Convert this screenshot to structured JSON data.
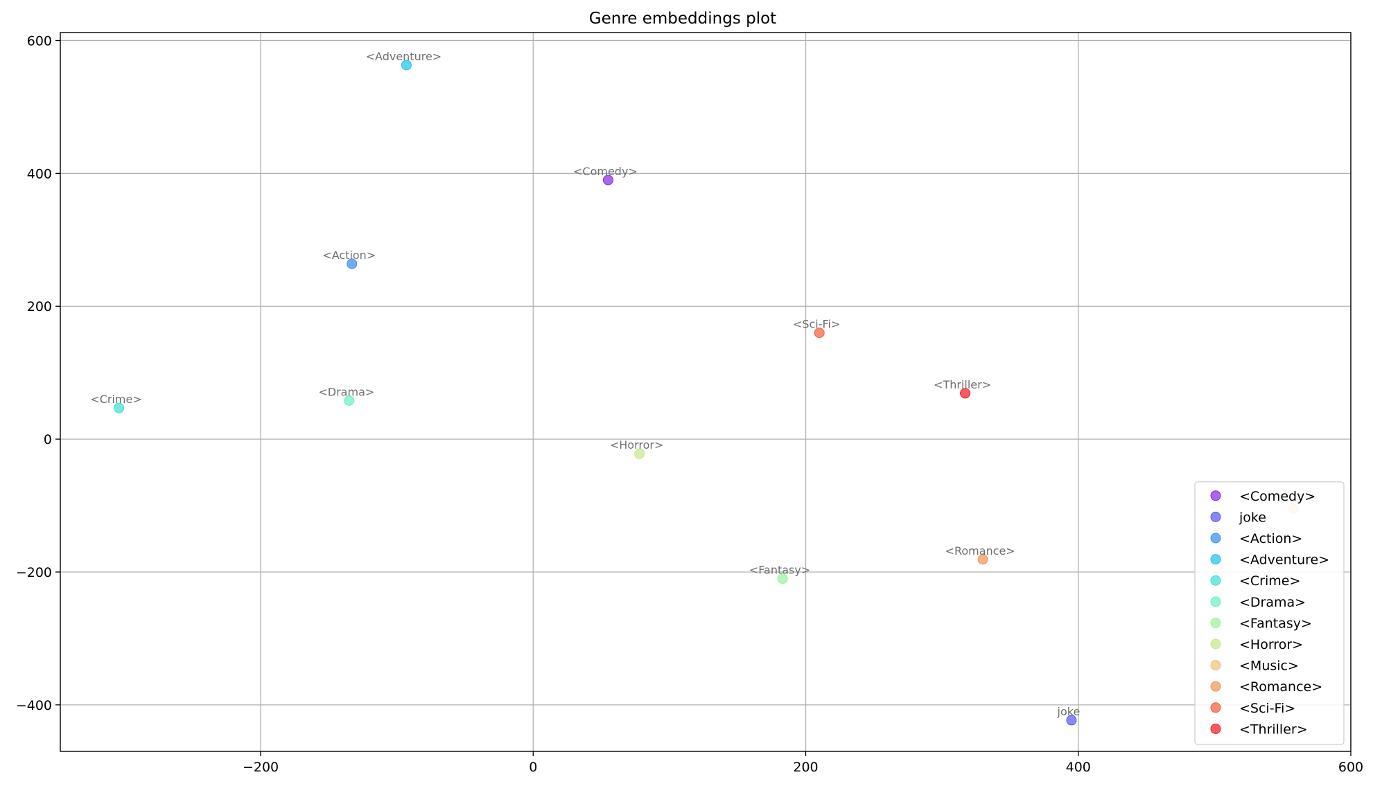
{
  "chart_data": {
    "type": "scatter",
    "title": "Genre embeddings plot",
    "xlabel": "",
    "ylabel": "",
    "xlim": [
      -347,
      600
    ],
    "ylim": [
      -470,
      612
    ],
    "xticks": [
      -200,
      0,
      200,
      400,
      600
    ],
    "yticks": [
      -400,
      -200,
      0,
      200,
      400,
      600
    ],
    "xtick_labels": [
      "−200",
      "0",
      "200",
      "400",
      "600"
    ],
    "ytick_labels": [
      "−400",
      "−200",
      "0",
      "200",
      "400",
      "600"
    ],
    "grid": true,
    "legend_position": "lower-right",
    "series": [
      {
        "name": "<Comedy>",
        "color": "#8a2be2",
        "points": [
          {
            "x": 55,
            "y": 390,
            "label": "<Comedy>"
          }
        ]
      },
      {
        "name": "joke",
        "color": "#5b5bf0",
        "points": [
          {
            "x": 395,
            "y": -423,
            "label": "joke"
          }
        ]
      },
      {
        "name": "<Action>",
        "color": "#3c8ef0",
        "points": [
          {
            "x": -133,
            "y": 264,
            "label": "<Action>"
          }
        ]
      },
      {
        "name": "<Adventure>",
        "color": "#22c2e8",
        "points": [
          {
            "x": -93,
            "y": 563,
            "label": "<Adventure>"
          }
        ]
      },
      {
        "name": "<Crime>",
        "color": "#40e0d0",
        "points": [
          {
            "x": -304,
            "y": 47,
            "label": "<Crime>"
          }
        ]
      },
      {
        "name": "<Drama>",
        "color": "#6cf0c0",
        "points": [
          {
            "x": -135,
            "y": 58,
            "label": "<Drama>"
          }
        ]
      },
      {
        "name": "<Fantasy>",
        "color": "#9af29a",
        "points": [
          {
            "x": 183,
            "y": -210,
            "label": "<Fantasy>"
          }
        ]
      },
      {
        "name": "<Horror>",
        "color": "#c6e88c",
        "points": [
          {
            "x": 78,
            "y": -22,
            "label": "<Horror>"
          }
        ]
      },
      {
        "name": "<Music>",
        "color": "#f0c27a",
        "points": [
          {
            "x": 558,
            "y": -105,
            "label": ""
          }
        ]
      },
      {
        "name": "<Romance>",
        "color": "#f4945a",
        "points": [
          {
            "x": 330,
            "y": -181,
            "label": "<Romance>"
          }
        ]
      },
      {
        "name": "<Sci-Fi>",
        "color": "#f2603c",
        "points": [
          {
            "x": 210,
            "y": 160,
            "label": "<Sci-Fi>"
          }
        ]
      },
      {
        "name": "<Thriller>",
        "color": "#f01e24",
        "points": [
          {
            "x": 317,
            "y": 69,
            "label": "<Thriller>"
          }
        ]
      }
    ]
  }
}
